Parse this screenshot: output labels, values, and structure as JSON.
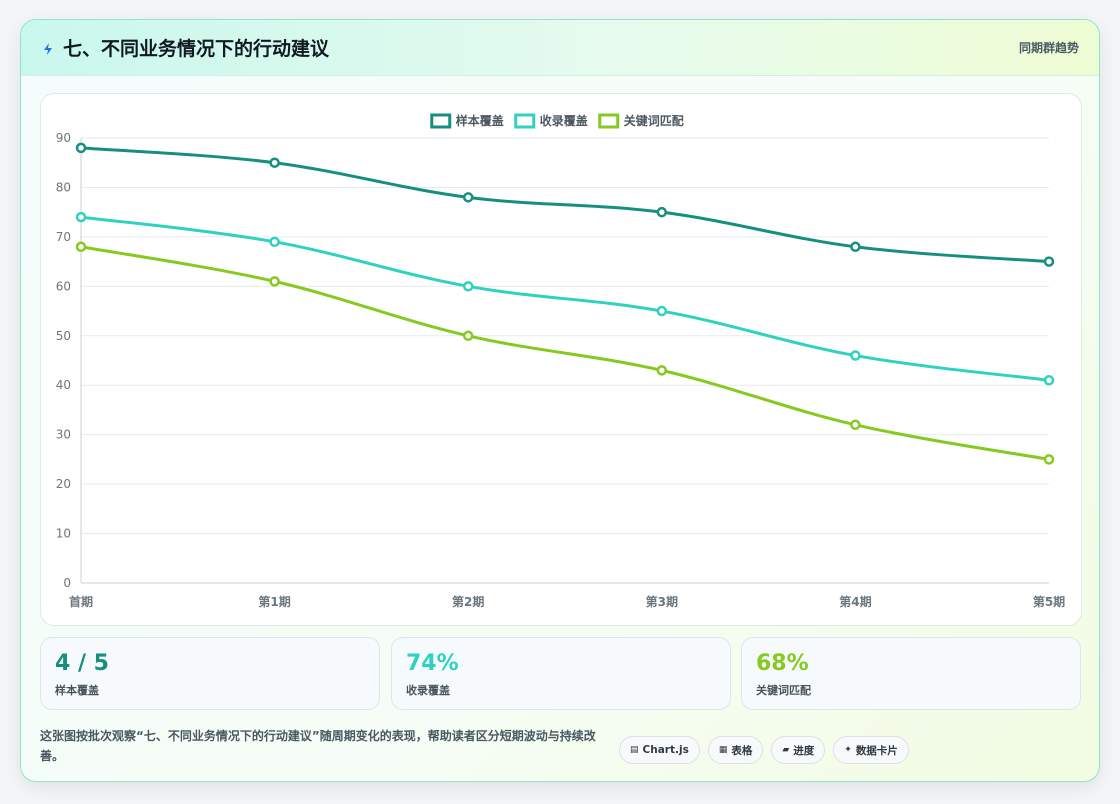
{
  "header": {
    "title": "七、不同业务情况下的行动建议",
    "tag": "同期群趋势"
  },
  "colors": {
    "series1": "#178f80",
    "series2": "#2fd1c0",
    "series3": "#86c921",
    "grid": "#e6ebef",
    "axis": "#c9d0d6",
    "tick": "#6b7780"
  },
  "chart_data": {
    "type": "line",
    "categories": [
      "首期",
      "第1期",
      "第2期",
      "第3期",
      "第4期",
      "第5期"
    ],
    "series": [
      {
        "name": "样本覆盖",
        "values": [
          88,
          85,
          78,
          75,
          68,
          65
        ]
      },
      {
        "name": "收录覆盖",
        "values": [
          74,
          69,
          60,
          55,
          46,
          41
        ]
      },
      {
        "name": "关键词匹配",
        "values": [
          68,
          61,
          50,
          43,
          32,
          25
        ]
      }
    ],
    "ylim": [
      0,
      90
    ],
    "yticks": [
      0,
      10,
      20,
      30,
      40,
      50,
      60,
      70,
      80,
      90
    ],
    "grid": true,
    "legend": "top-center"
  },
  "stats": [
    {
      "value": "4 / 5",
      "label": "样本覆盖"
    },
    {
      "value": "74%",
      "label": "收录覆盖"
    },
    {
      "value": "68%",
      "label": "关键词匹配"
    }
  ],
  "footer": {
    "description": "这张图按批次观察“七、不同业务情况下的行动建议”随周期变化的表现，帮助读者区分短期波动与持续改善。",
    "chips": [
      {
        "icon": "▤",
        "label": "Chart.js"
      },
      {
        "icon": "▦",
        "label": "表格"
      },
      {
        "icon": "▰",
        "label": "进度"
      },
      {
        "icon": "✦",
        "label": "数据卡片"
      }
    ]
  }
}
